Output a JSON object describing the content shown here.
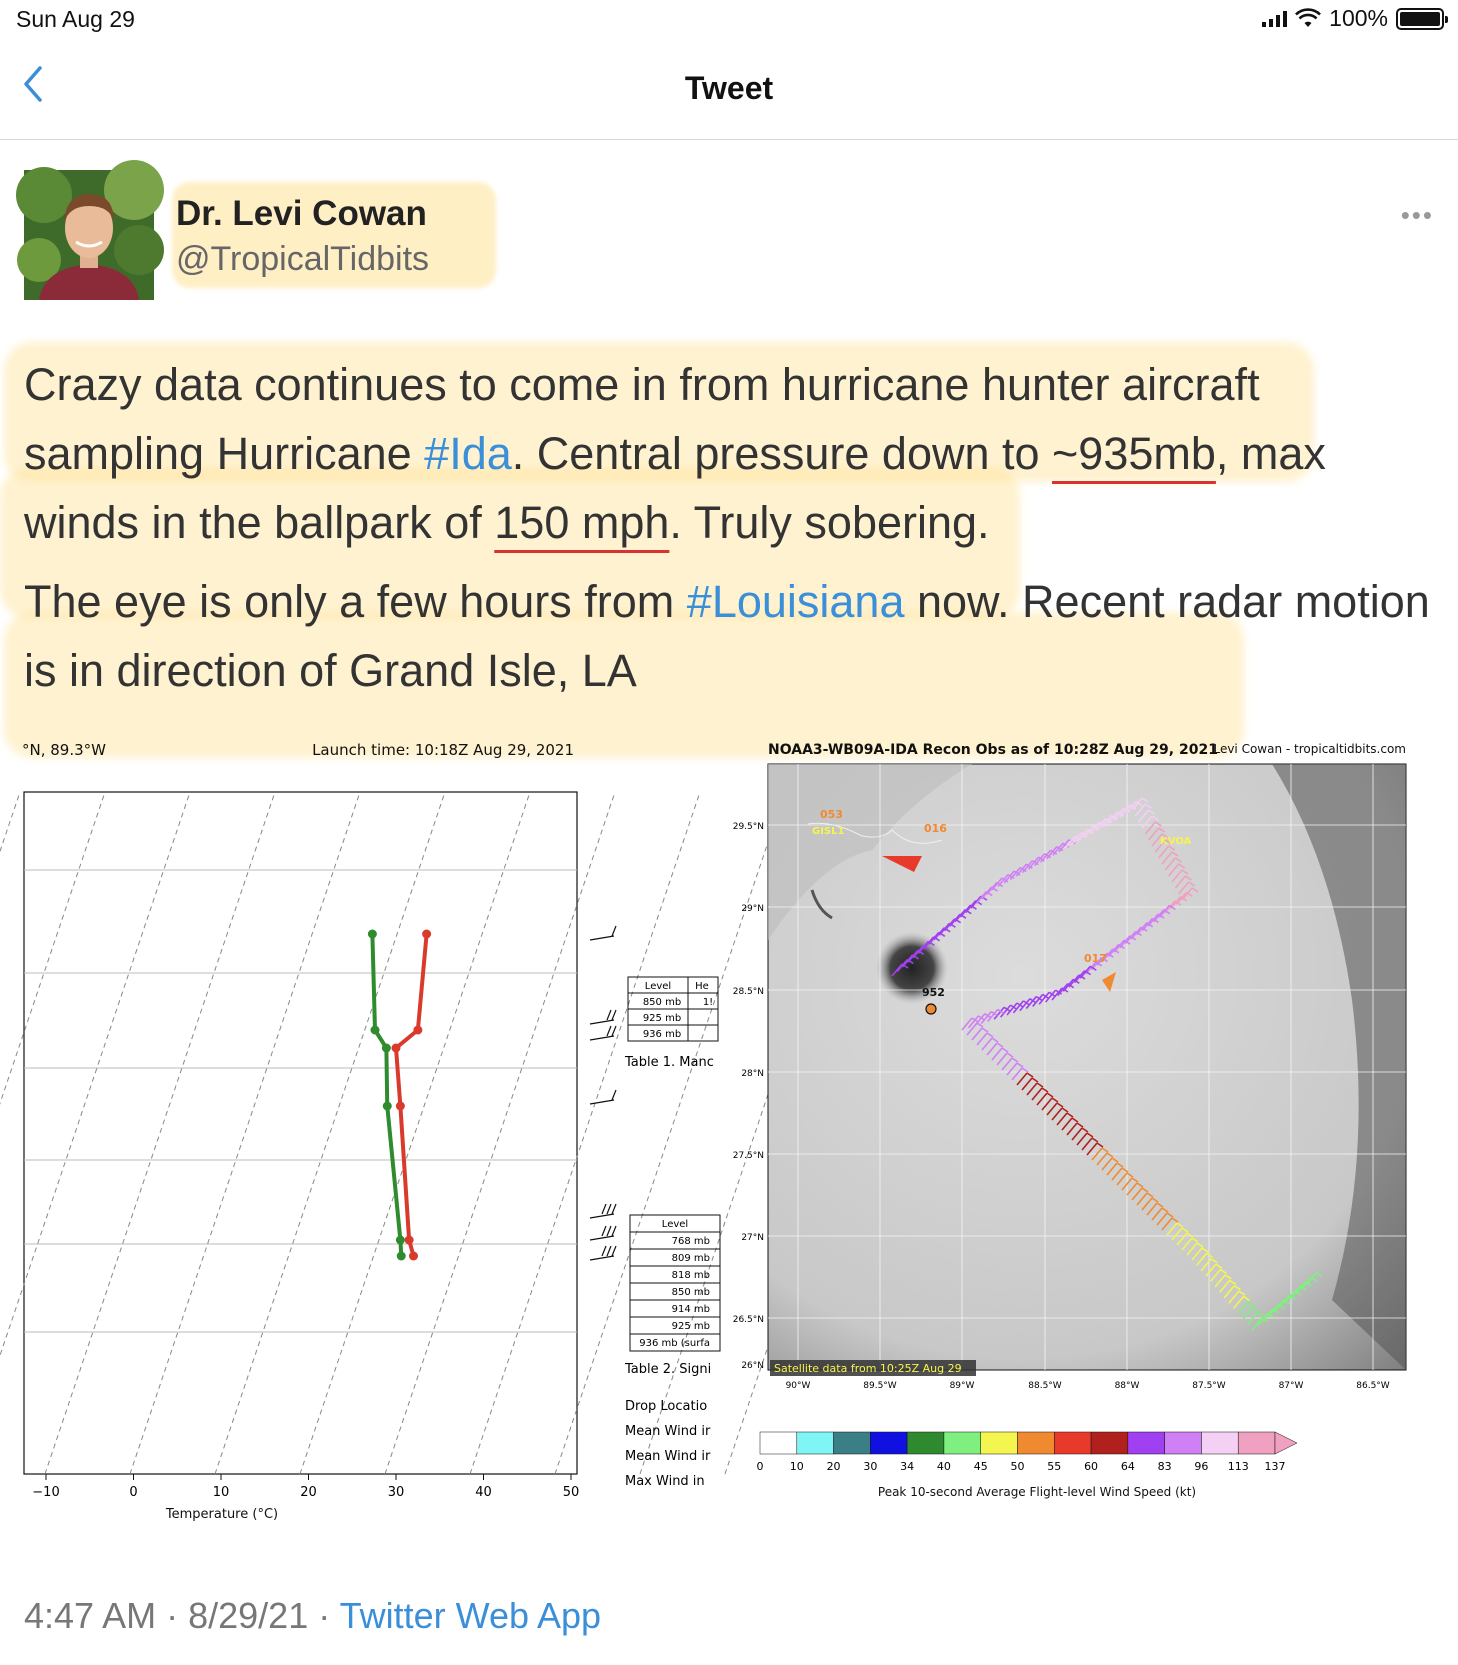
{
  "status_bar": {
    "date": "Sun Aug 29",
    "battery": "100%"
  },
  "nav": {
    "title": "Tweet"
  },
  "author": {
    "name": "Dr. Levi Cowan",
    "handle": "@TropicalTidbits"
  },
  "tweet": {
    "p1_a": "Crazy data continues to come in from hurricane hunter aircraft sampling Hurricane ",
    "p1_tag": "#Ida",
    "p1_b": ". Central pressure down to ",
    "p1_pressure": "~935mb",
    "p1_c": ", max winds in the ballpark of ",
    "p1_wind": "150 mph",
    "p1_d": ". Truly sobering.",
    "p2_a": "The eye is only a few hours from ",
    "p2_tag": "#Louisiana",
    "p2_b": " now. Recent radar motion is in direction of Grand Isle, LA"
  },
  "meta": {
    "time": "4:47 AM",
    "date": "8/29/21",
    "source": "Twitter Web App"
  },
  "sounding": {
    "location": "°N, 89.3°W",
    "launch": "Launch time: 10:18Z Aug 29, 2021",
    "xlabel": "Temperature (°C)",
    "xticks": [
      "−10",
      "0",
      "10",
      "20",
      "30",
      "40",
      "50"
    ],
    "table1_headers": [
      "Level",
      "He"
    ],
    "table1_rows": [
      "850 mb",
      "925 mb",
      "936 mb"
    ],
    "table1_col2": [
      "1!"
    ],
    "table1_caption": "Table 1. Manc",
    "table2_header": "Level",
    "table2_rows": [
      "768 mb",
      "809 mb",
      "818 mb",
      "850 mb",
      "914 mb",
      "925 mb",
      "936 mb (surfa"
    ],
    "table2_caption": "Table 2. Signi",
    "notes": [
      "Drop Locatio",
      "Mean Wind ir",
      "Mean Wind ir",
      "Max Wind in"
    ],
    "temp_color": "#d93a2b",
    "dew_color": "#2e8b2e"
  },
  "recon_map": {
    "title": "NOAA3-WB09A-IDA Recon Obs as of 10:28Z Aug 29, 2021",
    "credit": "Levi Cowan - tropicaltidbits.com",
    "lat_labels": [
      "29.5°N",
      "29°N",
      "28.5°N",
      "28°N",
      "27.5°N",
      "27°N",
      "26.5°N",
      "26°N"
    ],
    "lon_labels": [
      "90°W",
      "89.5°W",
      "89°W",
      "88.5°W",
      "88°W",
      "87.5°W",
      "87°W",
      "86.5°W"
    ],
    "satellite_note": "Satellite data from 10:25Z Aug 29",
    "center_pressure": "952",
    "station_labels": [
      "GISL1",
      "KVOA",
      "017",
      "016",
      "053"
    ],
    "colorbar_ticks": [
      "0",
      "10",
      "20",
      "30",
      "34",
      "40",
      "45",
      "50",
      "55",
      "60",
      "64",
      "83",
      "96",
      "113",
      "137"
    ],
    "colorbar_colors": [
      "#ffffff",
      "#7ff5f5",
      "#3a7f85",
      "#1010e0",
      "#2f8a2f",
      "#7ff07f",
      "#f5f550",
      "#f08a30",
      "#e83a2b",
      "#b0201c",
      "#a040f0",
      "#d080f5",
      "#f5d0f5",
      "#f0a0c0"
    ],
    "colorbar_label": "Peak 10-second Average Flight-level Wind Speed (kt)"
  }
}
